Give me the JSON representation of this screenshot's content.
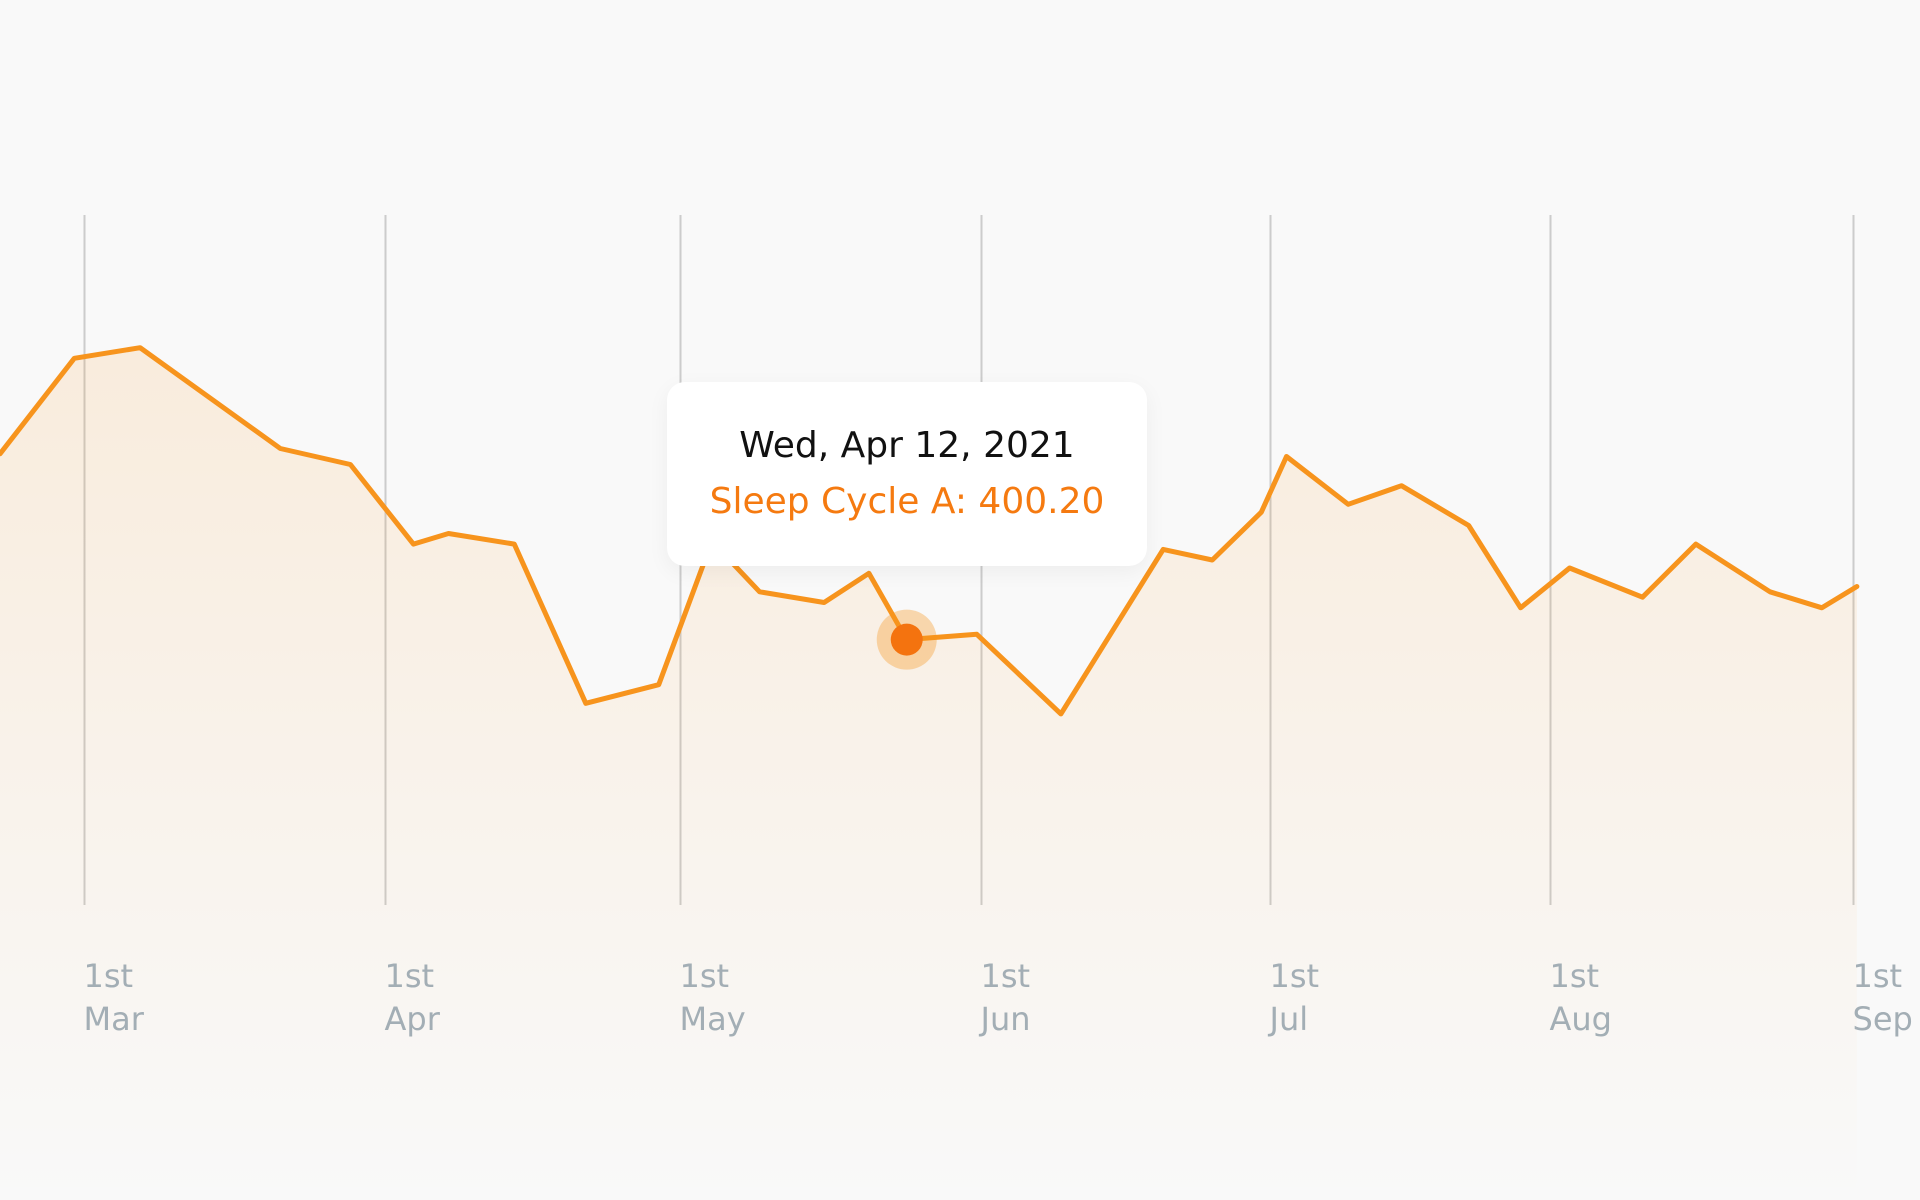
{
  "chart_data": {
    "type": "area",
    "tick_labels": [
      {
        "day": "1st",
        "month": "Mar"
      },
      {
        "day": "1st",
        "month": "Apr"
      },
      {
        "day": "1st",
        "month": "May"
      },
      {
        "day": "1st",
        "month": "Jun"
      },
      {
        "day": "1st",
        "month": "Jul"
      },
      {
        "day": "1st",
        "month": "Aug"
      },
      {
        "day": "1st",
        "month": "Sep"
      }
    ],
    "series": [
      {
        "values": [
          470,
          506,
          510,
          472,
          466,
          436,
          440,
          436,
          376,
          383,
          437,
          418,
          414,
          425,
          400,
          402,
          372,
          434,
          430,
          448,
          469,
          451,
          458,
          443,
          412,
          427,
          416,
          436,
          418,
          412,
          420
        ],
        "color": "#f7941d"
      }
    ],
    "x_positions": [
      0.0,
      0.53,
      1.0,
      2.0,
      2.5,
      2.95,
      3.2,
      3.67,
      4.18,
      4.7,
      5.08,
      5.42,
      5.88,
      6.2,
      6.47,
      6.97,
      7.57,
      8.3,
      8.65,
      9.0,
      9.18,
      9.62,
      10.0,
      10.48,
      10.85,
      11.2,
      11.72,
      12.1,
      12.63,
      13.0,
      13.25
    ],
    "tick_positions": [
      0.6,
      2.75,
      4.85,
      7.0,
      9.06,
      11.06,
      13.22
    ],
    "ylim": [
      300,
      560
    ],
    "xlim": [
      0,
      13.7
    ],
    "highlight": {
      "index": 14,
      "date": "Wed, Apr 12, 2021",
      "series_label": "Sleep Cycle A: 400.20"
    },
    "grid": "vertical",
    "accent_color": "#f7941d",
    "point_color": "#f4730f",
    "grid_color": "#cccccc",
    "tick_color": "#a3aeb5"
  }
}
